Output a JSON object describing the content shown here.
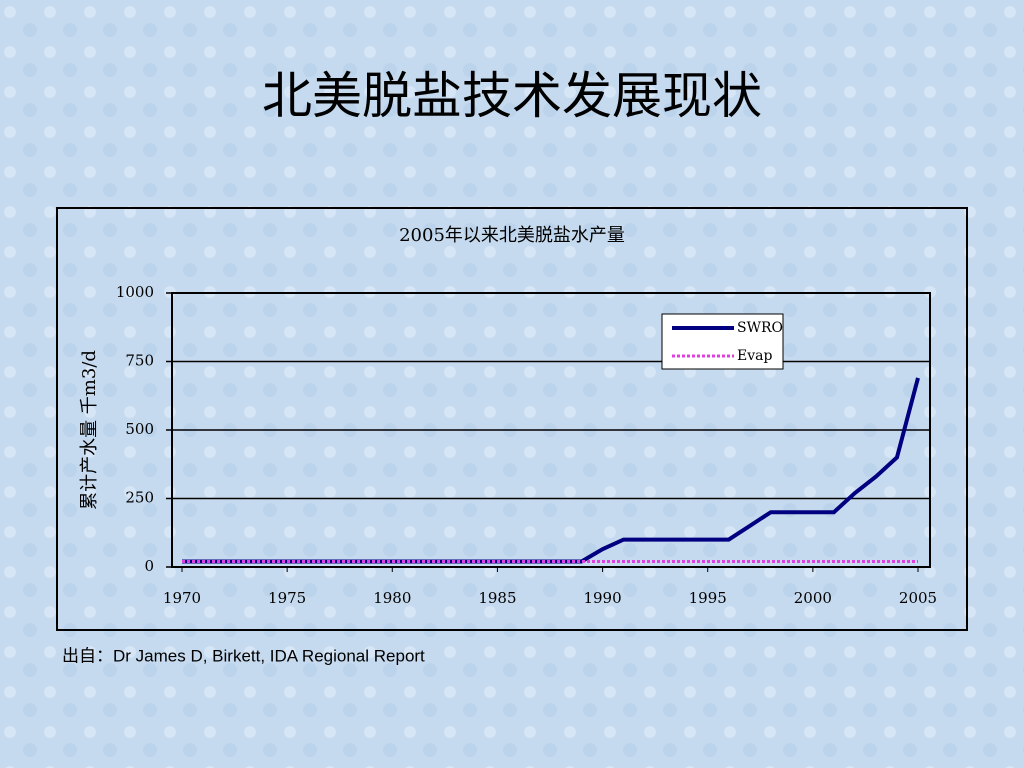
{
  "title": "北美脱盐技术发展现状",
  "chart_data": {
    "type": "line",
    "title": "2005年以来北美脱盐水产量",
    "y_label": "累计产水量 千m3/d",
    "x": [
      1970,
      1971,
      1972,
      1973,
      1974,
      1975,
      1976,
      1977,
      1978,
      1979,
      1980,
      1981,
      1982,
      1983,
      1984,
      1985,
      1986,
      1987,
      1988,
      1989,
      1990,
      1991,
      1992,
      1993,
      1994,
      1995,
      1996,
      1997,
      1998,
      1999,
      2000,
      2001,
      2002,
      2003,
      2004,
      2005
    ],
    "series": [
      {
        "name": "SWRO",
        "color": "#000080",
        "values": [
          20,
          20,
          20,
          20,
          20,
          20,
          20,
          20,
          20,
          20,
          20,
          20,
          20,
          20,
          20,
          20,
          20,
          20,
          20,
          20,
          65,
          100,
          100,
          100,
          100,
          100,
          100,
          150,
          200,
          200,
          200,
          200,
          270,
          330,
          400,
          690
        ]
      },
      {
        "name": "Evap",
        "color": "#e040e0",
        "values": [
          20,
          20,
          20,
          20,
          20,
          20,
          20,
          20,
          20,
          20,
          20,
          20,
          20,
          20,
          20,
          20,
          20,
          20,
          20,
          20,
          20,
          20,
          20,
          20,
          20,
          20,
          20,
          20,
          20,
          20,
          20,
          20,
          20,
          20,
          20,
          20
        ]
      }
    ],
    "xlim": [
      1970,
      2005
    ],
    "xticks": [
      1970,
      1975,
      1980,
      1985,
      1990,
      1995,
      2000,
      2005
    ],
    "ylim": [
      0,
      1000
    ],
    "yticks": [
      0,
      250,
      500,
      750,
      1000
    ],
    "grid": true,
    "legend": "upper right"
  },
  "source": "出自：Dr James D, Birkett, IDA Regional Report"
}
